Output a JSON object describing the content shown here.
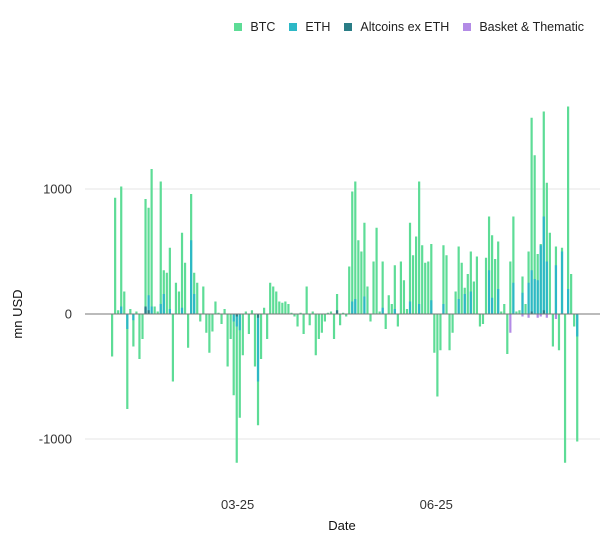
{
  "chart_data": {
    "type": "bar",
    "title": "",
    "xlabel": "Date",
    "ylabel": "mn USD",
    "ylim": [
      -1400,
      1800
    ],
    "yticks": [
      -1000,
      0,
      1000
    ],
    "ytick_labels": [
      "-1000",
      "0",
      "1000"
    ],
    "xticks": [
      {
        "date": "2025-03-01",
        "label": "03-25"
      },
      {
        "date": "2025-06-01",
        "label": "06-25"
      }
    ],
    "grid": true,
    "legend_position": "top-right",
    "x": [
      "2025-01-02",
      "2025-01-03",
      "2025-01-06",
      "2025-01-07",
      "2025-01-08",
      "2025-01-09",
      "2025-01-10",
      "2025-01-13",
      "2025-01-14",
      "2025-01-15",
      "2025-01-16",
      "2025-01-17",
      "2025-01-20",
      "2025-01-21",
      "2025-01-22",
      "2025-01-23",
      "2025-01-24",
      "2025-01-27",
      "2025-01-28",
      "2025-01-29",
      "2025-01-30",
      "2025-01-31",
      "2025-02-03",
      "2025-02-04",
      "2025-02-05",
      "2025-02-06",
      "2025-02-07",
      "2025-02-10",
      "2025-02-11",
      "2025-02-12",
      "2025-02-13",
      "2025-02-14",
      "2025-02-17",
      "2025-02-18",
      "2025-02-19",
      "2025-02-20",
      "2025-02-21",
      "2025-02-24",
      "2025-02-25",
      "2025-02-26",
      "2025-02-27",
      "2025-02-28",
      "2025-03-03",
      "2025-03-04",
      "2025-03-05",
      "2025-03-06",
      "2025-03-07",
      "2025-03-10",
      "2025-03-11",
      "2025-03-12",
      "2025-03-13",
      "2025-03-14",
      "2025-03-17",
      "2025-03-18",
      "2025-03-19",
      "2025-03-20",
      "2025-03-21",
      "2025-03-24",
      "2025-03-25",
      "2025-03-26",
      "2025-03-27",
      "2025-03-28",
      "2025-03-31",
      "2025-04-01",
      "2025-04-02",
      "2025-04-03",
      "2025-04-04",
      "2025-04-07",
      "2025-04-08",
      "2025-04-09",
      "2025-04-10",
      "2025-04-11",
      "2025-04-14",
      "2025-04-15",
      "2025-04-16",
      "2025-04-17",
      "2025-04-18",
      "2025-04-21",
      "2025-04-22",
      "2025-04-23",
      "2025-04-24",
      "2025-04-25",
      "2025-04-28",
      "2025-04-29",
      "2025-04-30",
      "2025-05-01",
      "2025-05-02",
      "2025-05-05",
      "2025-05-06",
      "2025-05-07",
      "2025-05-08",
      "2025-05-09",
      "2025-05-12",
      "2025-05-13",
      "2025-05-14",
      "2025-05-15",
      "2025-05-16",
      "2025-05-19",
      "2025-05-20",
      "2025-05-21",
      "2025-05-22",
      "2025-05-23",
      "2025-05-26",
      "2025-05-27",
      "2025-05-28",
      "2025-05-29",
      "2025-05-30",
      "2025-06-02",
      "2025-06-03",
      "2025-06-04",
      "2025-06-05",
      "2025-06-06",
      "2025-06-09",
      "2025-06-10",
      "2025-06-11",
      "2025-06-12",
      "2025-06-13",
      "2025-06-16",
      "2025-06-17",
      "2025-06-18",
      "2025-06-19",
      "2025-06-20",
      "2025-06-23",
      "2025-06-24",
      "2025-06-25",
      "2025-06-26",
      "2025-06-27",
      "2025-06-30",
      "2025-07-01",
      "2025-07-02",
      "2025-07-03",
      "2025-07-04",
      "2025-07-07",
      "2025-07-08",
      "2025-07-09",
      "2025-07-10",
      "2025-07-11",
      "2025-07-14",
      "2025-07-15",
      "2025-07-16",
      "2025-07-17",
      "2025-07-18",
      "2025-07-21",
      "2025-07-22",
      "2025-07-23",
      "2025-07-24",
      "2025-07-25",
      "2025-07-28",
      "2025-07-29",
      "2025-07-30",
      "2025-07-31",
      "2025-08-01",
      "2025-08-04",
      "2025-08-05"
    ],
    "series": [
      {
        "name": "BTC",
        "color": "#5ddc96",
        "values": [
          -340,
          930,
          30,
          1020,
          180,
          -760,
          40,
          -260,
          20,
          -360,
          -200,
          920,
          850,
          1160,
          60,
          20,
          1060,
          350,
          330,
          530,
          -540,
          250,
          180,
          650,
          410,
          -270,
          960,
          330,
          250,
          -60,
          220,
          -150,
          -310,
          -140,
          100,
          10,
          -80,
          40,
          -420,
          -200,
          -650,
          -1190,
          -830,
          -330,
          20,
          -160,
          30,
          -420,
          -890,
          -360,
          50,
          -200,
          250,
          220,
          180,
          100,
          90,
          100,
          80,
          10,
          -20,
          -100,
          10,
          -160,
          220,
          -90,
          20,
          -330,
          -200,
          -150,
          -60,
          10,
          20,
          -200,
          160,
          -90,
          10,
          -20,
          380,
          980,
          1060,
          590,
          500,
          730,
          220,
          -60,
          420,
          690,
          20,
          420,
          -120,
          150,
          80,
          390,
          -100,
          420,
          270,
          40,
          730,
          470,
          620,
          1060,
          550,
          410,
          420,
          560,
          -310,
          -660,
          -290,
          550,
          470,
          -290,
          -150,
          180,
          540,
          410,
          210,
          320,
          500,
          260,
          460,
          -100,
          -80,
          450,
          780,
          630,
          440,
          580,
          20,
          80,
          -320,
          420,
          780,
          20,
          30,
          300,
          80,
          500,
          1570,
          1270,
          480,
          560,
          1620,
          1050,
          650,
          -260,
          540,
          -290,
          530,
          -1190,
          1660,
          320,
          -100,
          -1020
        ]
      },
      {
        "name": "ETH",
        "color": "#2db8c6",
        "values": [
          0,
          0,
          0,
          60,
          0,
          -120,
          0,
          -50,
          0,
          0,
          0,
          50,
          150,
          60,
          0,
          0,
          80,
          160,
          0,
          40,
          0,
          0,
          0,
          50,
          0,
          0,
          590,
          160,
          0,
          0,
          0,
          0,
          0,
          0,
          0,
          0,
          0,
          0,
          0,
          0,
          -60,
          -100,
          -130,
          0,
          0,
          0,
          0,
          0,
          -540,
          0,
          0,
          0,
          0,
          0,
          0,
          0,
          0,
          0,
          0,
          0,
          0,
          0,
          0,
          0,
          0,
          0,
          0,
          0,
          0,
          0,
          0,
          0,
          0,
          0,
          0,
          0,
          0,
          0,
          0,
          100,
          120,
          0,
          0,
          140,
          0,
          0,
          0,
          0,
          0,
          50,
          0,
          0,
          0,
          40,
          0,
          0,
          0,
          0,
          100,
          0,
          0,
          80,
          0,
          0,
          0,
          110,
          0,
          0,
          0,
          80,
          0,
          0,
          0,
          0,
          120,
          0,
          160,
          0,
          180,
          0,
          0,
          0,
          0,
          0,
          350,
          130,
          0,
          200,
          0,
          0,
          0,
          0,
          250,
          0,
          0,
          170,
          0,
          250,
          350,
          280,
          270,
          550,
          780,
          420,
          0,
          0,
          390,
          0,
          500,
          0,
          200,
          0,
          0,
          -180
        ]
      },
      {
        "name": "Altcoins ex ETH",
        "color": "#2a7d86",
        "values": [
          0,
          0,
          0,
          0,
          0,
          0,
          0,
          0,
          0,
          0,
          0,
          60,
          30,
          0,
          0,
          0,
          0,
          0,
          0,
          0,
          0,
          0,
          0,
          0,
          0,
          0,
          0,
          0,
          0,
          0,
          0,
          0,
          0,
          0,
          0,
          0,
          0,
          0,
          0,
          0,
          0,
          -20,
          0,
          0,
          0,
          0,
          0,
          0,
          -30,
          0,
          0,
          0,
          0,
          0,
          0,
          0,
          0,
          0,
          0,
          0,
          0,
          0,
          0,
          0,
          0,
          0,
          0,
          0,
          0,
          0,
          0,
          0,
          0,
          0,
          30,
          0,
          0,
          0,
          0,
          0,
          0,
          0,
          0,
          0,
          0,
          0,
          0,
          0,
          0,
          0,
          0,
          0,
          0,
          0,
          0,
          0,
          0,
          0,
          0,
          0,
          0,
          0,
          0,
          0,
          0,
          0,
          0,
          0,
          0,
          0,
          0,
          0,
          0,
          0,
          0,
          0,
          0,
          0,
          0,
          0,
          0,
          0,
          0,
          0,
          0,
          0,
          0,
          0,
          0,
          0,
          0,
          0,
          0,
          0,
          0,
          0,
          0,
          0,
          20,
          0,
          0,
          0,
          30,
          0,
          0,
          0,
          0,
          0,
          0,
          0,
          0,
          0,
          0,
          0
        ]
      },
      {
        "name": "Basket & Thematic",
        "color": "#b38be6",
        "values": [
          0,
          0,
          0,
          0,
          0,
          0,
          0,
          0,
          0,
          0,
          0,
          0,
          0,
          0,
          0,
          0,
          0,
          0,
          0,
          0,
          0,
          0,
          0,
          0,
          0,
          0,
          0,
          0,
          0,
          0,
          0,
          0,
          0,
          0,
          0,
          0,
          0,
          0,
          0,
          0,
          0,
          0,
          0,
          0,
          0,
          0,
          0,
          0,
          0,
          0,
          0,
          0,
          0,
          0,
          0,
          0,
          0,
          0,
          0,
          0,
          0,
          0,
          0,
          0,
          0,
          0,
          0,
          0,
          0,
          0,
          0,
          0,
          0,
          0,
          0,
          0,
          0,
          0,
          0,
          0,
          0,
          0,
          0,
          0,
          0,
          0,
          0,
          0,
          0,
          0,
          0,
          0,
          0,
          0,
          0,
          0,
          0,
          0,
          0,
          0,
          0,
          0,
          0,
          0,
          0,
          0,
          0,
          0,
          0,
          0,
          0,
          0,
          0,
          0,
          0,
          0,
          0,
          0,
          0,
          0,
          0,
          0,
          0,
          0,
          0,
          0,
          0,
          0,
          0,
          0,
          0,
          -150,
          0,
          0,
          0,
          -20,
          0,
          -30,
          0,
          0,
          -30,
          -20,
          0,
          -30,
          0,
          0,
          -40,
          0,
          0,
          0,
          0,
          0,
          0,
          0
        ]
      }
    ]
  }
}
